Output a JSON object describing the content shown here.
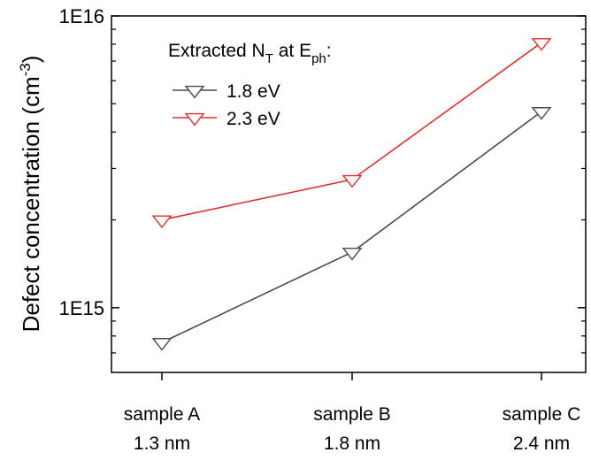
{
  "chart_data": {
    "type": "line",
    "title": "",
    "xlabel": "",
    "ylabel": "Defect concentration (cm",
    "ylabel_sup": "-3",
    "ylabel_close": ")",
    "y_scale": "log",
    "ylim": [
      600000000000000.0,
      1e+16
    ],
    "y_ticks": [
      {
        "value": 1000000000000000.0,
        "label": "1E15"
      },
      {
        "value": 1e+16,
        "label": "1E16"
      }
    ],
    "categories": [
      {
        "line1": "sample A",
        "line2": "1.3 nm"
      },
      {
        "line1": "sample B",
        "line2": "1.8 nm"
      },
      {
        "line1": "sample C",
        "line2": "2.4 nm"
      }
    ],
    "series": [
      {
        "name": "1.8 eV",
        "color": "#4a4a4a",
        "marker": "triangle-down-open",
        "values": [
          760000000000000.0,
          1550000000000000.0,
          4700000000000000.0
        ]
      },
      {
        "name": "2.3 eV",
        "color": "#e03030",
        "marker": "triangle-down-open",
        "values": [
          2000000000000000.0,
          2750000000000000.0,
          8100000000000000.0
        ]
      }
    ],
    "legend": {
      "title_prefix": "Extracted N",
      "title_sub1": "T",
      "title_mid": " at E",
      "title_sub2": "ph",
      "title_suffix": ":",
      "placement": "top-left"
    },
    "grid": false
  }
}
